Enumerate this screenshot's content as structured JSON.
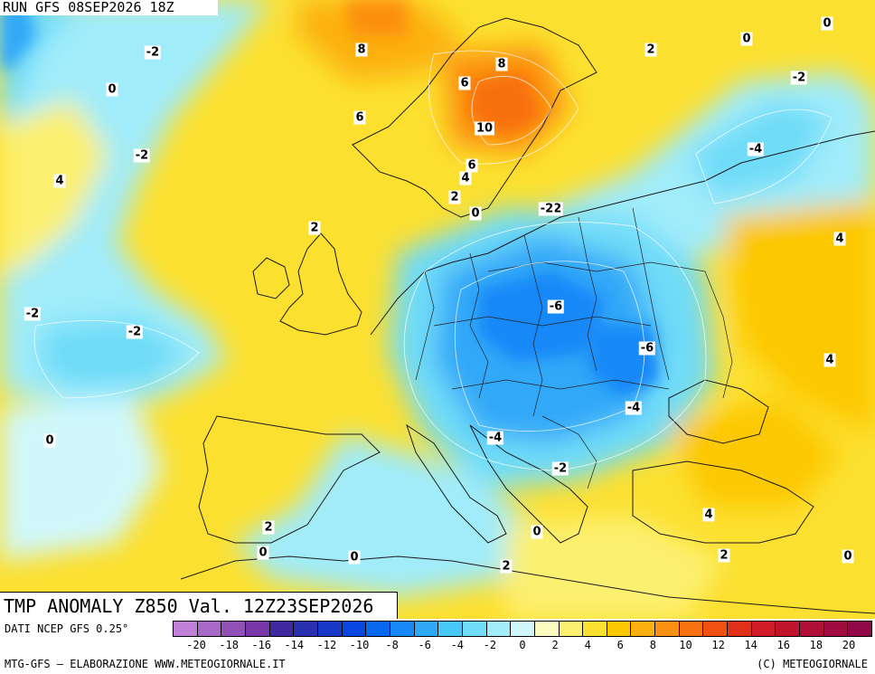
{
  "header": {
    "run_label": "RUN GFS 08SEP2026 18Z"
  },
  "map": {
    "title": "TMP ANOMALY Z850 Val. 12Z23SEP2026",
    "contour_labels": [
      "-2",
      "0",
      "-2",
      "4",
      "8",
      "6",
      "2",
      "8",
      "6",
      "10",
      "6",
      "4",
      "2",
      "0",
      "-2",
      "2",
      "0",
      "-2",
      "-2",
      "-2",
      "-6",
      "-6",
      "-4",
      "-4",
      "-2",
      "0",
      "2",
      "0",
      "0",
      "0",
      "2",
      "4",
      "2",
      "0",
      "4",
      "4",
      "-4",
      "-2",
      "2",
      "0"
    ]
  },
  "footer": {
    "source": "DATI NCEP GFS 0.25°",
    "credit": "MTG-GFS — ELABORAZIONE WWW.METEOGIORNALE.IT",
    "copyright": "(C) METEOGIORNALE"
  },
  "legend": {
    "colors": [
      "#c080d8",
      "#a868c8",
      "#9050b8",
      "#7838a8",
      "#4028a0",
      "#2830b0",
      "#1838c8",
      "#0848e0",
      "#0868f0",
      "#1888f8",
      "#30a8f8",
      "#48c8f8",
      "#70dcf8",
      "#a0ecfa",
      "#d0f8fc",
      "#fcfcc0",
      "#fcf070",
      "#fce030",
      "#fcc800",
      "#fcb010",
      "#fc9010",
      "#f87010",
      "#f05010",
      "#e03018",
      "#d01c28",
      "#c0142c",
      "#b01038",
      "#a00c40",
      "#900848"
    ],
    "tick_labels": [
      "-20",
      "-18",
      "-16",
      "-14",
      "-12",
      "-10",
      "-8",
      "-6",
      "-4",
      "-2",
      "0",
      "2",
      "4",
      "6",
      "8",
      "10",
      "12",
      "14",
      "16",
      "18",
      "20"
    ]
  }
}
